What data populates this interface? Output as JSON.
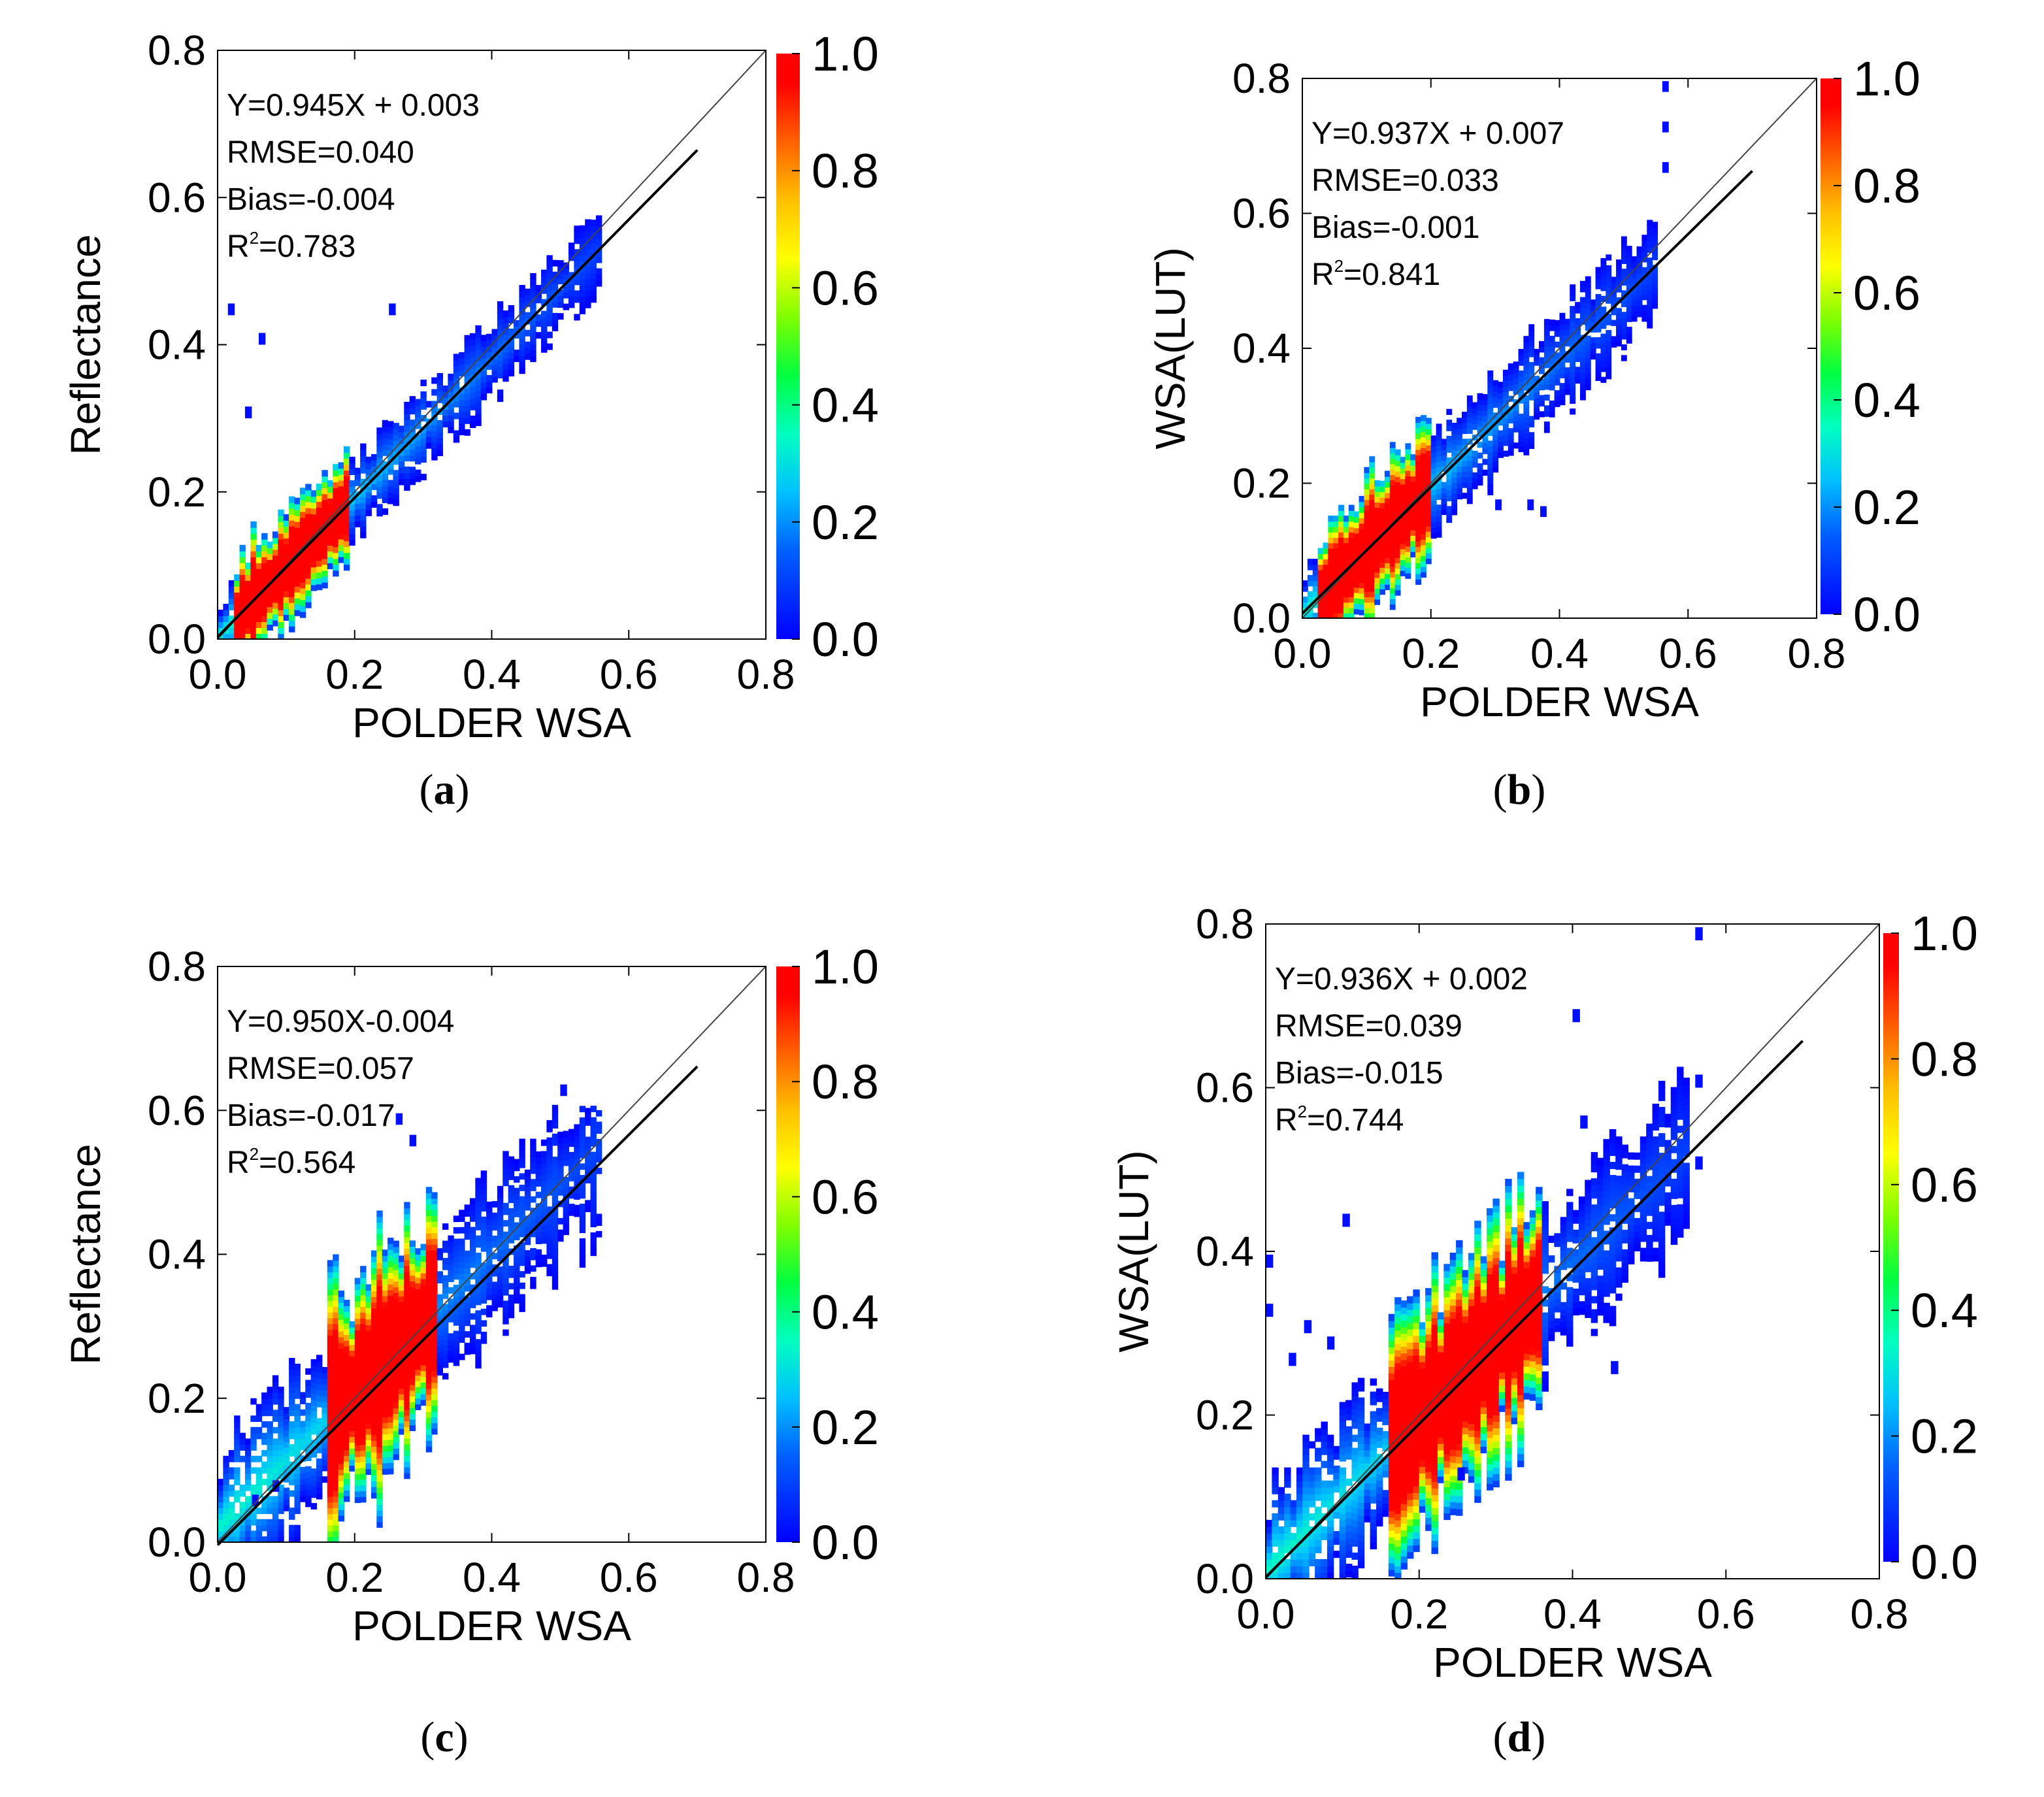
{
  "chart_data": [
    {
      "panel": "a",
      "type": "scatter",
      "subtype": "density-scatter",
      "xlabel": "POLDER WSA",
      "ylabel": "Reflectance",
      "xlim": [
        0.0,
        0.8
      ],
      "ylim": [
        0.0,
        0.8
      ],
      "xticks": [
        "0.0",
        "0.2",
        "0.4",
        "0.6",
        "0.8"
      ],
      "yticks": [
        "0.0",
        "0.2",
        "0.4",
        "0.6",
        "0.8"
      ],
      "stats": {
        "equation": "Y=0.945X + 0.003",
        "rmse": "RMSE=0.040",
        "bias": "Bias=-0.004",
        "r2_prefix": "R",
        "r2_sup": "2",
        "r2_value": "=0.783"
      },
      "fit": {
        "slope": 0.945,
        "intercept": 0.003,
        "x_end": 0.7
      },
      "one_to_one": true,
      "colorbar": {
        "ticks": [
          "0.0",
          "0.2",
          "0.4",
          "0.6",
          "0.8",
          "1.0"
        ],
        "min": 0.0,
        "max": 1.0
      },
      "caption": {
        "open": "(",
        "letter": "a",
        "close": ")"
      },
      "density": {
        "core_x": [
          0.02,
          0.19
        ],
        "tail_x_max": 0.56,
        "tail_y_max": 0.58,
        "slope": 0.945,
        "intercept": 0.003,
        "spread": 0.05,
        "outliers": [
          [
            0.015,
            0.44
          ],
          [
            0.25,
            0.44
          ],
          [
            0.04,
            0.3
          ],
          [
            0.06,
            0.4
          ]
        ]
      }
    },
    {
      "panel": "b",
      "type": "scatter",
      "subtype": "density-scatter",
      "xlabel": "POLDER WSA",
      "ylabel": "WSA(LUT)",
      "xlim": [
        0.0,
        0.8
      ],
      "ylim": [
        0.0,
        0.8
      ],
      "xticks": [
        "0.0",
        "0.2",
        "0.4",
        "0.6",
        "0.8"
      ],
      "yticks": [
        "0.0",
        "0.2",
        "0.4",
        "0.6",
        "0.8"
      ],
      "stats": {
        "equation": "Y=0.937X + 0.007",
        "rmse": "RMSE=0.033",
        "bias": "Bias=-0.001",
        "r2_prefix": "R",
        "r2_sup": "2",
        "r2_value": "=0.841"
      },
      "fit": {
        "slope": 0.937,
        "intercept": 0.007,
        "x_end": 0.7
      },
      "one_to_one": true,
      "colorbar": {
        "ticks": [
          "0.0",
          "0.2",
          "0.4",
          "0.6",
          "0.8",
          "1.0"
        ],
        "min": 0.0,
        "max": 1.0
      },
      "caption": {
        "open": "(",
        "letter": "b",
        "close": ")"
      },
      "density": {
        "core_x": [
          0.02,
          0.2
        ],
        "tail_x_max": 0.55,
        "tail_y_max": 0.66,
        "slope": 0.937,
        "intercept": 0.007,
        "spread": 0.07,
        "outliers": [
          [
            0.3,
            0.16
          ],
          [
            0.35,
            0.16
          ],
          [
            0.37,
            0.15
          ],
          [
            0.56,
            0.78
          ],
          [
            0.56,
            0.72
          ],
          [
            0.56,
            0.66
          ]
        ]
      }
    },
    {
      "panel": "c",
      "type": "scatter",
      "subtype": "density-scatter",
      "xlabel": "POLDER WSA",
      "ylabel": "Reflectance",
      "xlim": [
        0.0,
        0.8
      ],
      "ylim": [
        0.0,
        0.8
      ],
      "xticks": [
        "0.0",
        "0.2",
        "0.4",
        "0.6",
        "0.8"
      ],
      "yticks": [
        "0.0",
        "0.2",
        "0.4",
        "0.6",
        "0.8"
      ],
      "stats": {
        "equation": "Y=0.950X-0.004",
        "rmse": "RMSE=0.057",
        "bias": "Bias=-0.017",
        "r2_prefix": "R",
        "r2_sup": "2",
        "r2_value": "=0.564"
      },
      "fit": {
        "slope": 0.95,
        "intercept": -0.004,
        "x_end": 0.7
      },
      "one_to_one": true,
      "colorbar": {
        "ticks": [
          "0.0",
          "0.2",
          "0.4",
          "0.6",
          "0.8",
          "1.0"
        ],
        "min": 0.0,
        "max": 1.0
      },
      "caption": {
        "open": "(",
        "letter": "c",
        "close": ")"
      },
      "density": {
        "core_x": [
          0.16,
          0.32
        ],
        "tail_x_max": 0.56,
        "tail_y_max": 0.6,
        "slope": 0.95,
        "intercept": 0.02,
        "spread": 0.1,
        "outliers": [
          [
            0.26,
            0.58
          ],
          [
            0.28,
            0.55
          ],
          [
            0.05,
            0.05
          ],
          [
            0.08,
            0.07
          ],
          [
            0.5,
            0.62
          ]
        ]
      }
    },
    {
      "panel": "d",
      "type": "scatter",
      "subtype": "density-scatter",
      "xlabel": "POLDER WSA",
      "ylabel": "WSA(LUT)",
      "xlim": [
        0.0,
        0.8
      ],
      "ylim": [
        0.0,
        0.8
      ],
      "xticks": [
        "0.0",
        "0.2",
        "0.4",
        "0.6",
        "0.8"
      ],
      "yticks": [
        "0.0",
        "0.2",
        "0.4",
        "0.6",
        "0.8"
      ],
      "stats": {
        "equation": "Y=0.936X + 0.002",
        "rmse": "RMSE=0.039",
        "bias": "Bias=-0.015",
        "r2_prefix": "R",
        "r2_sup": "2",
        "r2_value": "=0.744"
      },
      "fit": {
        "slope": 0.936,
        "intercept": 0.002,
        "x_end": 0.7
      },
      "one_to_one": true,
      "colorbar": {
        "ticks": [
          "0.0",
          "0.2",
          "0.4",
          "0.6",
          "0.8",
          "1.0"
        ],
        "min": 0.0,
        "max": 1.0
      },
      "caption": {
        "open": "(",
        "letter": "d",
        "close": ")"
      },
      "density": {
        "core_x": [
          0.16,
          0.36
        ],
        "tail_x_max": 0.55,
        "tail_y_max": 0.68,
        "slope": 0.936,
        "intercept": 0.01,
        "spread": 0.09,
        "outliers": [
          [
            0.1,
            0.43
          ],
          [
            0.0,
            0.38
          ],
          [
            0.0,
            0.32
          ],
          [
            0.05,
            0.3
          ],
          [
            0.08,
            0.28
          ],
          [
            0.03,
            0.26
          ],
          [
            0.4,
            0.68
          ],
          [
            0.41,
            0.55
          ],
          [
            0.56,
            0.78
          ],
          [
            0.56,
            0.6
          ],
          [
            0.56,
            0.5
          ],
          [
            0.45,
            0.25
          ],
          [
            0.25,
            0.12
          ]
        ]
      }
    }
  ]
}
